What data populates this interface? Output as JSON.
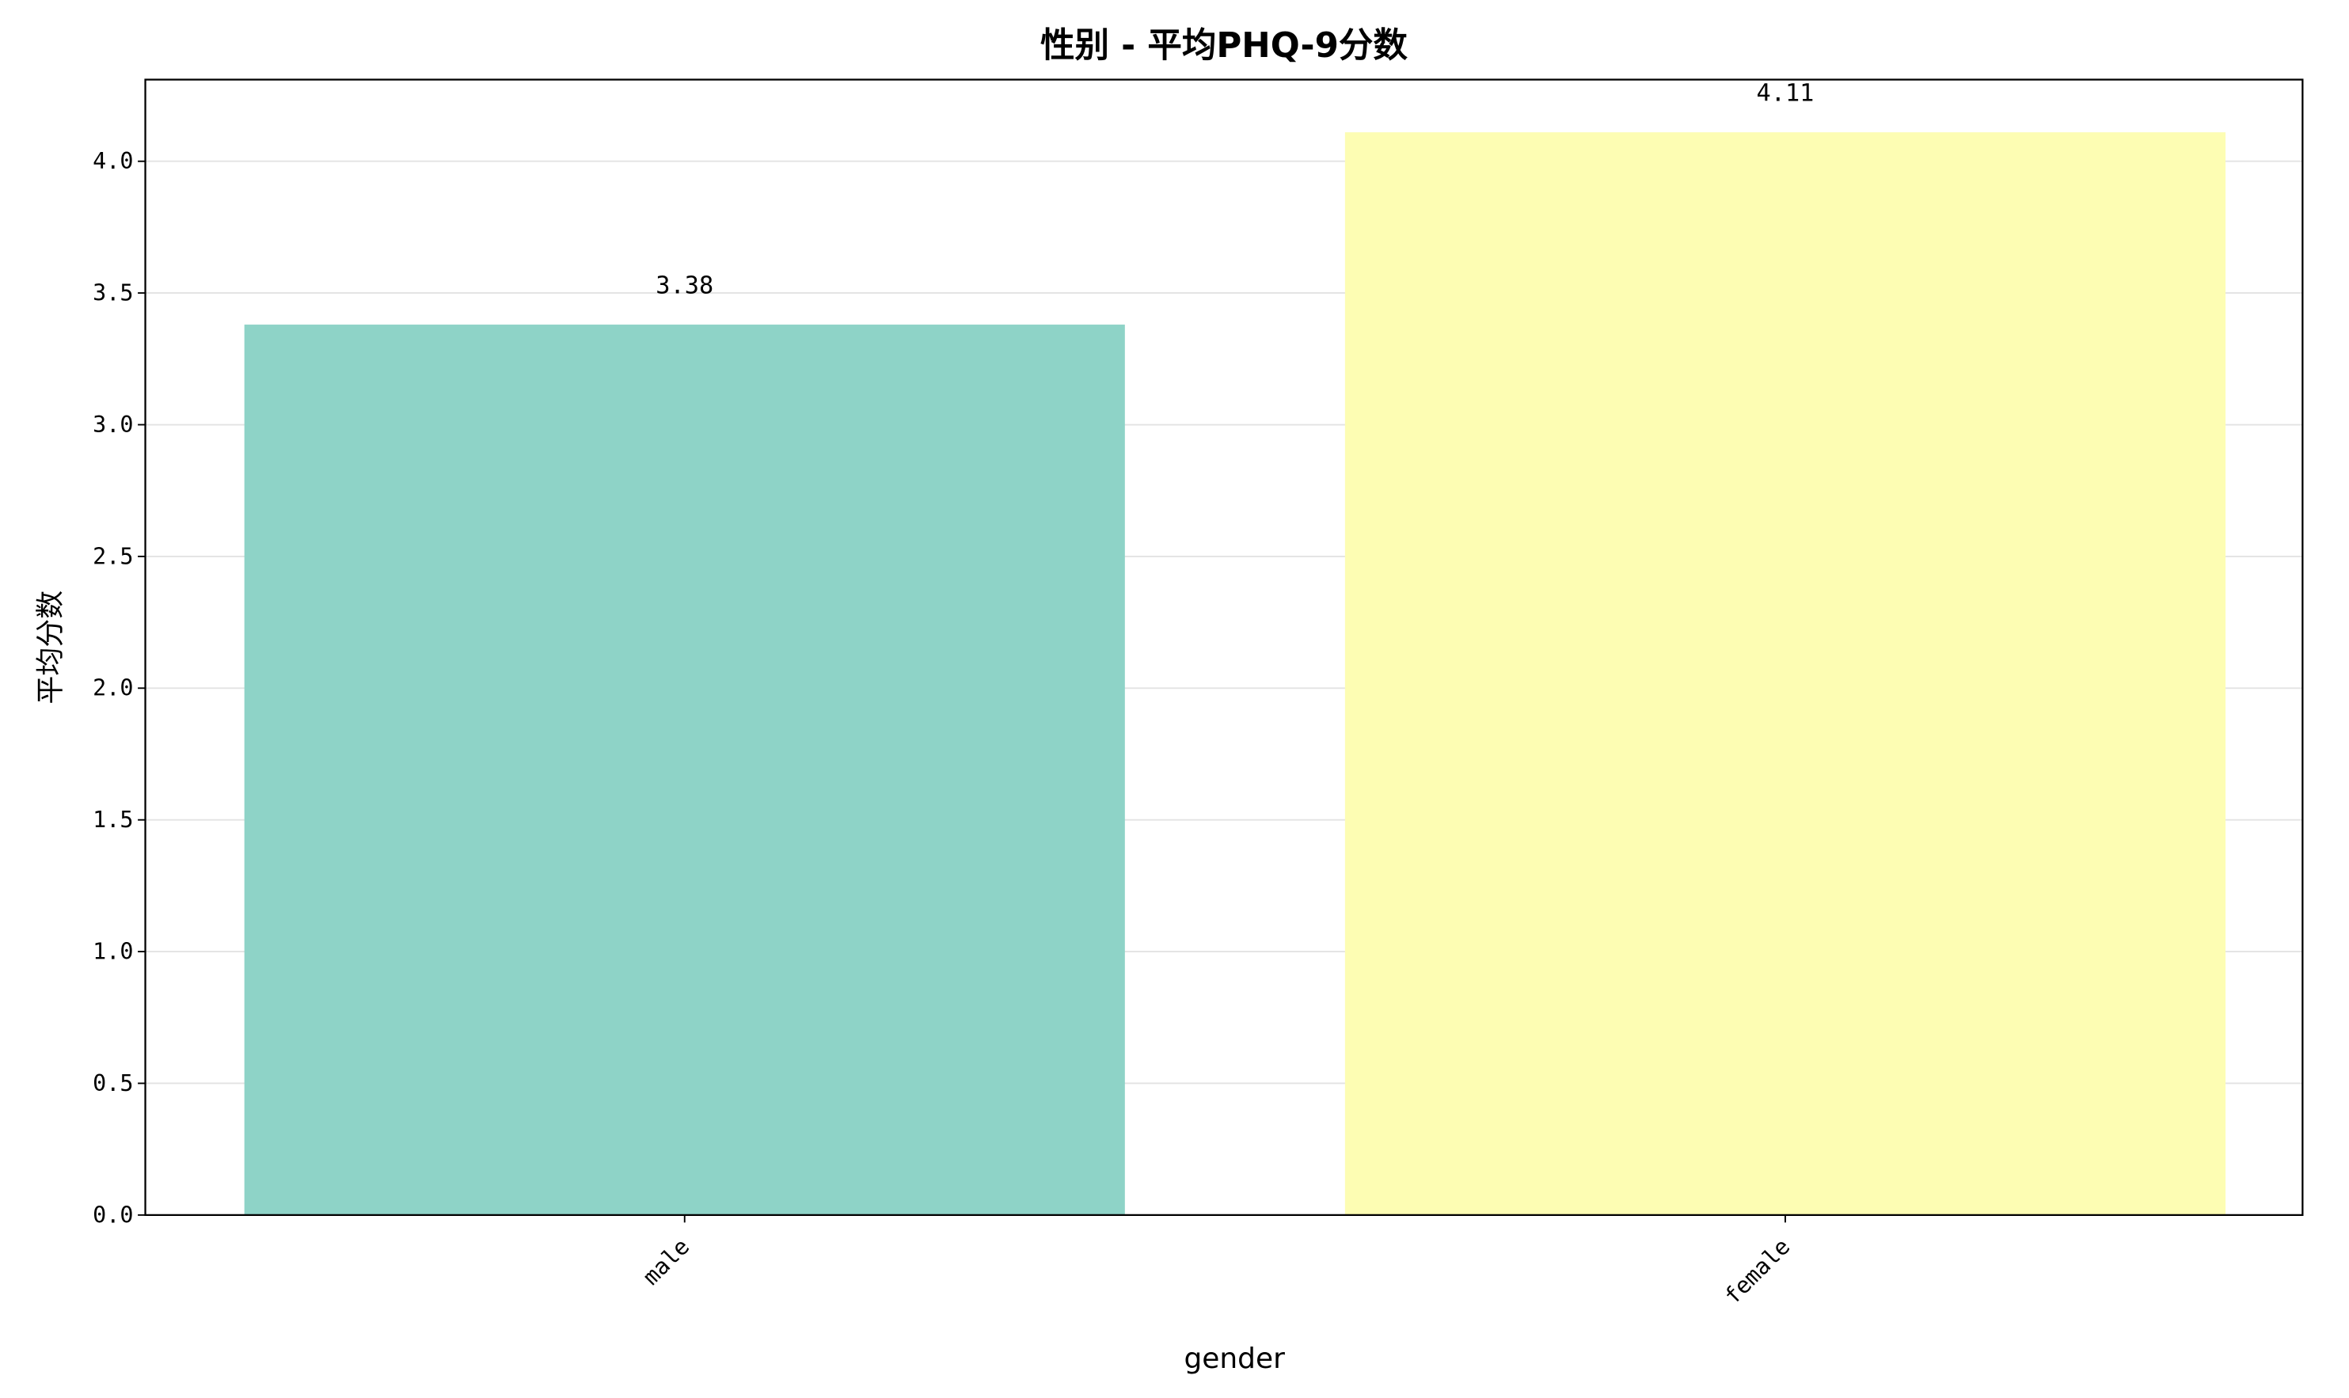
{
  "chart_data": {
    "type": "bar",
    "title": "性别 - 平均PHQ-9分数",
    "xlabel": "gender",
    "ylabel": "平均分数",
    "categories": [
      "male",
      "female"
    ],
    "values": [
      3.38,
      4.11
    ],
    "data_labels": [
      "3.38",
      "4.11"
    ],
    "colors": [
      "#8ed3c7",
      "#fdfdb3"
    ],
    "ylim": [
      0,
      4.31
    ],
    "yticks": [
      0.0,
      0.5,
      1.0,
      1.5,
      2.0,
      2.5,
      3.0,
      3.5,
      4.0
    ],
    "ytick_labels": [
      "0.0",
      "0.5",
      "1.0",
      "1.5",
      "2.0",
      "2.5",
      "3.0",
      "3.5",
      "4.0"
    ],
    "xtick_rotation": 45,
    "grid": "y-axis, light gray",
    "legend": "none"
  }
}
